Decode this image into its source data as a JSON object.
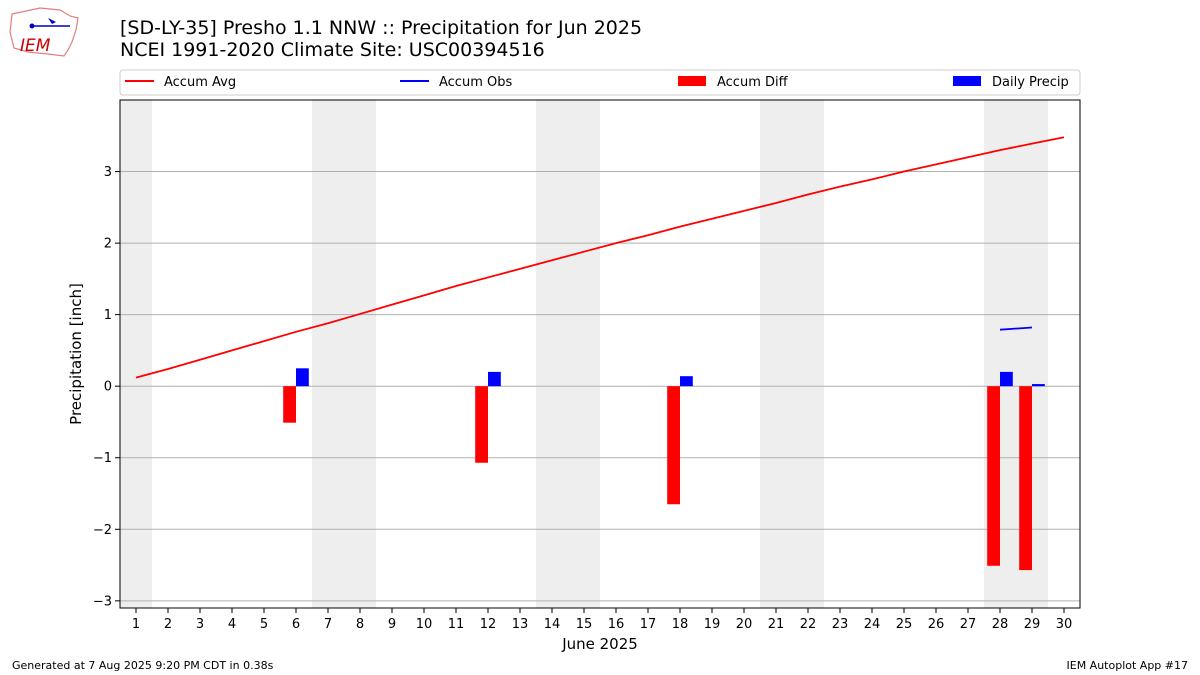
{
  "header": {
    "title_line1": "[SD-LY-35] Presho 1.1 NNW :: Precipitation for Jun 2025",
    "title_line2": "NCEI 1991-2020 Climate Site: USC00394516"
  },
  "footer": {
    "generated": "Generated at 7 Aug 2025 9:20 PM CDT in 0.38s",
    "app": "IEM Autoplot App #17"
  },
  "logo": {
    "text": "IEM"
  },
  "colors": {
    "accum_avg": "#ff0000",
    "accum_obs": "#0000ff",
    "accum_diff": "#ff0000",
    "daily_precip": "#0000ff",
    "weekend_shade": "#eeeeee",
    "grid": "#b0b0b0"
  },
  "chart_data": {
    "type": "bar",
    "xlabel": "June 2025",
    "ylabel": "Precipitation [inch]",
    "xlim": [
      0.5,
      30.5
    ],
    "ylim": [
      -3.1,
      4.0
    ],
    "xticks": [
      "1",
      "2",
      "3",
      "4",
      "5",
      "6",
      "7",
      "8",
      "9",
      "10",
      "11",
      "12",
      "13",
      "14",
      "15",
      "16",
      "17",
      "18",
      "19",
      "20",
      "21",
      "22",
      "23",
      "24",
      "25",
      "26",
      "27",
      "28",
      "29",
      "30"
    ],
    "yticks": [
      {
        "value": -3,
        "label": "−3"
      },
      {
        "value": -2,
        "label": "−2"
      },
      {
        "value": -1,
        "label": "−1"
      },
      {
        "value": 0,
        "label": "0"
      },
      {
        "value": 1,
        "label": "1"
      },
      {
        "value": 2,
        "label": "2"
      },
      {
        "value": 3,
        "label": "3"
      }
    ],
    "grid": "horizontal",
    "legend_position": "top",
    "weekend_days": [
      1,
      7,
      8,
      14,
      15,
      21,
      22,
      28,
      29
    ],
    "legend": [
      {
        "name": "Accum Avg",
        "kind": "line",
        "color": "#ff0000"
      },
      {
        "name": "Accum Obs",
        "kind": "line",
        "color": "#0000ff"
      },
      {
        "name": "Accum Diff",
        "kind": "bar",
        "color": "#ff0000"
      },
      {
        "name": "Daily Precip",
        "kind": "bar",
        "color": "#0000ff"
      }
    ],
    "series": [
      {
        "name": "Accum Avg",
        "kind": "line",
        "x": [
          1,
          2,
          3,
          4,
          5,
          6,
          7,
          8,
          9,
          10,
          11,
          12,
          13,
          14,
          15,
          16,
          17,
          18,
          19,
          20,
          21,
          22,
          23,
          24,
          25,
          26,
          27,
          28,
          29,
          30
        ],
        "values": [
          0.12,
          0.24,
          0.37,
          0.5,
          0.63,
          0.76,
          0.88,
          1.01,
          1.14,
          1.27,
          1.4,
          1.52,
          1.64,
          1.76,
          1.88,
          2.0,
          2.11,
          2.23,
          2.34,
          2.45,
          2.56,
          2.68,
          2.79,
          2.89,
          3.0,
          3.1,
          3.2,
          3.3,
          3.39,
          3.48
        ]
      },
      {
        "name": "Accum Obs",
        "kind": "line",
        "x": [
          28,
          29
        ],
        "values": [
          0.79,
          0.82
        ]
      },
      {
        "name": "Accum Diff",
        "kind": "bar",
        "x": [
          6,
          12,
          18,
          28,
          29
        ],
        "values": [
          -0.51,
          -1.07,
          -1.65,
          -2.51,
          -2.57
        ]
      },
      {
        "name": "Daily Precip",
        "kind": "bar",
        "x": [
          6,
          12,
          18,
          28,
          29
        ],
        "values": [
          0.25,
          0.2,
          0.14,
          0.2,
          0.03
        ]
      }
    ]
  }
}
